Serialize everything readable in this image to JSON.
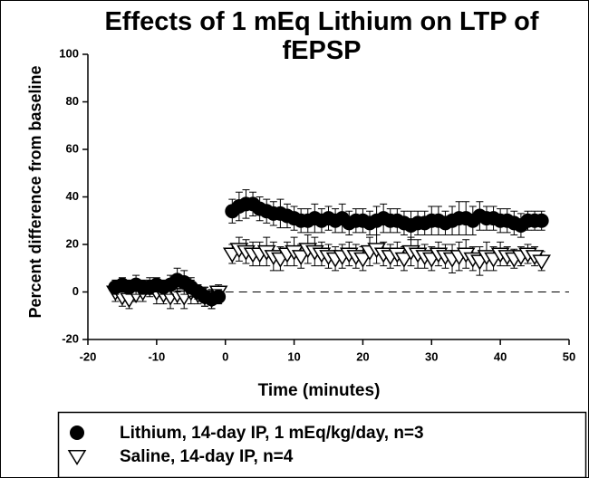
{
  "chart_data": {
    "type": "scatter",
    "title": "Effects of 1 mEq Lithium on LTP of fEPSP",
    "x_label": "Time (minutes)",
    "y_label": "Percent difference from baseline",
    "xlim": [
      -20,
      50
    ],
    "xticks": [
      -20,
      -10,
      0,
      10,
      20,
      30,
      40,
      50
    ],
    "ylim": [
      -20,
      100
    ],
    "yticks": [
      -20,
      0,
      20,
      40,
      60,
      80,
      100
    ],
    "reference_line": 0,
    "series": [
      {
        "name": "Lithium, 14-day IP, 1 mEq/kg/day, n=3",
        "color": "#000000",
        "marker": "circle",
        "x": [
          -16,
          -15,
          -14,
          -13,
          -12,
          -11,
          -10,
          -9,
          -8,
          -7,
          -6,
          -5,
          -4,
          -3,
          -2,
          -1,
          1,
          2,
          3,
          4,
          5,
          6,
          7,
          8,
          9,
          10,
          11,
          12,
          13,
          14,
          15,
          16,
          17,
          18,
          19,
          20,
          21,
          22,
          23,
          24,
          25,
          26,
          27,
          28,
          29,
          30,
          31,
          32,
          33,
          34,
          35,
          36,
          37,
          38,
          39,
          40,
          41,
          42,
          43,
          44,
          45,
          46
        ],
        "values": [
          2,
          3,
          2,
          3,
          2,
          2,
          3,
          2,
          3,
          5,
          4,
          2,
          0,
          -2,
          -3,
          -2,
          34,
          36,
          37,
          37,
          35,
          34,
          33,
          33,
          32,
          31,
          30,
          30,
          31,
          30,
          31,
          30,
          31,
          29,
          30,
          30,
          29,
          30,
          31,
          30,
          30,
          29,
          28,
          29,
          29,
          30,
          30,
          29,
          30,
          31,
          31,
          30,
          32,
          31,
          31,
          30,
          30,
          29,
          28,
          30,
          30,
          30
        ],
        "errors": [
          3,
          3,
          3,
          4,
          3,
          3,
          3,
          3,
          4,
          5,
          5,
          4,
          3,
          4,
          4,
          3,
          5,
          6,
          6,
          5,
          5,
          5,
          5,
          6,
          5,
          5,
          5,
          5,
          6,
          5,
          5,
          5,
          6,
          5,
          5,
          5,
          5,
          6,
          6,
          5,
          5,
          5,
          6,
          5,
          5,
          6,
          6,
          5,
          6,
          7,
          7,
          6,
          6,
          5,
          5,
          5,
          5,
          5,
          5,
          4,
          4,
          4
        ]
      },
      {
        "name": "Saline, 14-day IP, n=4",
        "color": "#000000",
        "marker": "triangle-down",
        "x": [
          -16,
          -15,
          -14,
          -13,
          -12,
          -11,
          -10,
          -9,
          -8,
          -7,
          -6,
          -5,
          -4,
          -3,
          -2,
          -1,
          1,
          2,
          3,
          4,
          5,
          6,
          7,
          8,
          9,
          10,
          11,
          12,
          13,
          14,
          15,
          16,
          17,
          18,
          19,
          20,
          21,
          22,
          23,
          24,
          25,
          26,
          27,
          28,
          29,
          30,
          31,
          32,
          33,
          34,
          35,
          36,
          37,
          38,
          39,
          40,
          41,
          42,
          43,
          44,
          45,
          46
        ],
        "values": [
          0,
          -2,
          -3,
          -1,
          0,
          2,
          0,
          -1,
          -2,
          -1,
          -2,
          0,
          -1,
          -2,
          -3,
          0,
          16,
          18,
          17,
          16,
          16,
          17,
          15,
          14,
          16,
          17,
          15,
          18,
          17,
          16,
          15,
          14,
          15,
          16,
          15,
          14,
          17,
          18,
          16,
          15,
          16,
          14,
          17,
          16,
          15,
          14,
          16,
          15,
          14,
          15,
          16,
          14,
          13,
          15,
          14,
          16,
          15,
          14,
          15,
          16,
          15,
          13
        ],
        "errors": [
          4,
          4,
          4,
          3,
          4,
          4,
          5,
          4,
          5,
          4,
          5,
          5,
          4,
          4,
          4,
          3,
          4,
          5,
          5,
          5,
          5,
          6,
          6,
          5,
          5,
          6,
          5,
          6,
          6,
          5,
          5,
          5,
          5,
          5,
          5,
          5,
          6,
          6,
          5,
          5,
          5,
          5,
          6,
          6,
          5,
          5,
          5,
          5,
          6,
          6,
          6,
          5,
          6,
          6,
          5,
          5,
          4,
          4,
          4,
          4,
          4,
          4
        ]
      }
    ]
  }
}
